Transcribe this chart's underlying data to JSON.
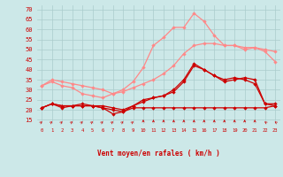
{
  "x": [
    0,
    1,
    2,
    3,
    4,
    5,
    6,
    7,
    8,
    9,
    10,
    11,
    12,
    13,
    14,
    15,
    16,
    17,
    18,
    19,
    20,
    21,
    22,
    23
  ],
  "line_dark1": [
    21,
    23,
    21,
    22,
    22,
    22,
    21,
    20,
    19,
    21,
    21,
    21,
    21,
    21,
    21,
    21,
    21,
    21,
    21,
    21,
    21,
    21,
    21,
    22
  ],
  "line_dark2": [
    21,
    23,
    22,
    22,
    22,
    22,
    21,
    18,
    19,
    22,
    25,
    26,
    27,
    30,
    35,
    43,
    40,
    37,
    35,
    36,
    35,
    33,
    23,
    23
  ],
  "line_dark3": [
    21,
    23,
    22,
    22,
    23,
    22,
    22,
    21,
    20,
    22,
    24,
    26,
    27,
    29,
    34,
    42,
    40,
    37,
    34,
    35,
    36,
    35,
    23,
    22
  ],
  "line_pink1": [
    32,
    35,
    34,
    33,
    32,
    31,
    30,
    28,
    29,
    31,
    33,
    35,
    38,
    42,
    48,
    52,
    53,
    53,
    52,
    52,
    51,
    51,
    50,
    49
  ],
  "line_pink2": [
    32,
    34,
    32,
    31,
    28,
    27,
    26,
    28,
    30,
    34,
    41,
    52,
    56,
    61,
    61,
    68,
    64,
    57,
    52,
    52,
    50,
    51,
    49,
    44
  ],
  "background_color": "#cce8e8",
  "grid_color": "#aacccc",
  "dark_color": "#cc0000",
  "pink_color": "#ff8888",
  "xlabel": "Vent moyen/en rafales ( km/h )",
  "ylim": [
    13,
    72
  ],
  "yticks": [
    15,
    20,
    25,
    30,
    35,
    40,
    45,
    50,
    55,
    60,
    65,
    70
  ],
  "arrow_angles": [
    45,
    45,
    45,
    45,
    45,
    45,
    45,
    45,
    45,
    45,
    0,
    0,
    0,
    0,
    0,
    0,
    0,
    0,
    0,
    0,
    0,
    0,
    315,
    315
  ]
}
